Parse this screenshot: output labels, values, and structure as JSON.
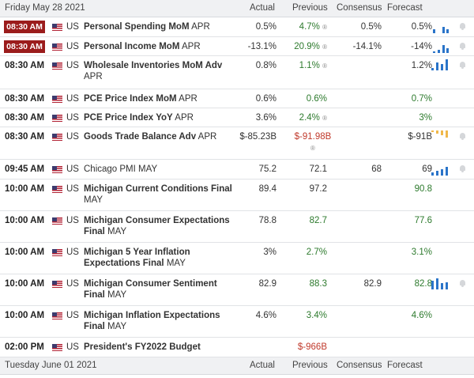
{
  "day1": {
    "date": "Friday May 28 2021",
    "actual": "Actual",
    "previous": "Previous",
    "consensus": "Consensus",
    "forecast": "Forecast"
  },
  "day2": {
    "date": "Tuesday June 01 2021",
    "actual": "Actual",
    "previous": "Previous",
    "consensus": "Consensus",
    "forecast": "Forecast"
  },
  "colors": {
    "red_time": "#9b1c1c",
    "green": "#2d7a2d",
    "red": "#c0392b",
    "bar_blue": "#2a74c9",
    "bar_orange": "#f0b84a"
  },
  "rows": [
    {
      "time": "08:30 AM",
      "country": "US",
      "event": "Personal Spending MoM",
      "period": "APR",
      "actual": "0.5%",
      "previous": "4.7%",
      "prev_mark": "®",
      "consensus": "0.5%",
      "forecast": "0.5%"
    },
    {
      "time": "08:30 AM",
      "country": "US",
      "event": "Personal Income MoM",
      "period": "APR",
      "actual": "-13.1%",
      "previous": "20.9%",
      "prev_mark": "®",
      "consensus": "-14.1%",
      "forecast": "-14%"
    },
    {
      "time": "08:30 AM",
      "country": "US",
      "event": "Wholesale Inventories MoM Adv",
      "period": "APR",
      "actual": "0.8%",
      "previous": "1.1%",
      "prev_mark": "®",
      "consensus": "",
      "forecast": "1.2%"
    },
    {
      "time": "08:30 AM",
      "country": "US",
      "event": "PCE Price Index MoM",
      "period": "APR",
      "actual": "0.6%",
      "previous": "0.6%",
      "prev_mark": "",
      "consensus": "",
      "forecast": "0.7%"
    },
    {
      "time": "08:30 AM",
      "country": "US",
      "event": "PCE Price Index YoY",
      "period": "APR",
      "actual": "3.6%",
      "previous": "2.4%",
      "prev_mark": "®",
      "consensus": "",
      "forecast": "3%"
    },
    {
      "time": "08:30 AM",
      "country": "US",
      "event": "Goods Trade Balance Adv",
      "period": "APR",
      "actual": "$-85.23B",
      "previous": "$-91.98B",
      "prev_mark": "®",
      "consensus": "",
      "forecast": "$-91B"
    },
    {
      "time": "09:45 AM",
      "country": "US",
      "event": "Chicago PMI",
      "period": "MAY",
      "actual": "75.2",
      "previous": "72.1",
      "prev_mark": "",
      "consensus": "68",
      "forecast": "69"
    },
    {
      "time": "10:00 AM",
      "country": "US",
      "event": "Michigan Current Conditions Final",
      "period": "MAY",
      "actual": "89.4",
      "previous": "97.2",
      "prev_mark": "",
      "consensus": "",
      "forecast": "90.8"
    },
    {
      "time": "10:00 AM",
      "country": "US",
      "event": "Michigan Consumer Expectations Final",
      "period": "MAY",
      "actual": "78.8",
      "previous": "82.7",
      "prev_mark": "",
      "consensus": "",
      "forecast": "77.6"
    },
    {
      "time": "10:00 AM",
      "country": "US",
      "event": "Michigan 5 Year Inflation Expectations Final",
      "period": "MAY",
      "actual": "3%",
      "previous": "2.7%",
      "prev_mark": "",
      "consensus": "",
      "forecast": "3.1%"
    },
    {
      "time": "10:00 AM",
      "country": "US",
      "event": "Michigan Consumer Sentiment Final",
      "period": "MAY",
      "actual": "82.9",
      "previous": "88.3",
      "prev_mark": "",
      "consensus": "82.9",
      "forecast": "82.8"
    },
    {
      "time": "10:00 AM",
      "country": "US",
      "event": "Michigan Inflation Expectations Final",
      "period": "MAY",
      "actual": "4.6%",
      "previous": "3.4%",
      "prev_mark": "",
      "consensus": "",
      "forecast": "4.6%"
    },
    {
      "time": "02:00 PM",
      "country": "US",
      "event": "President's FY2022 Budget",
      "period": "",
      "actual": "",
      "previous": "$-966B",
      "prev_mark": "",
      "consensus": "",
      "forecast": ""
    }
  ]
}
